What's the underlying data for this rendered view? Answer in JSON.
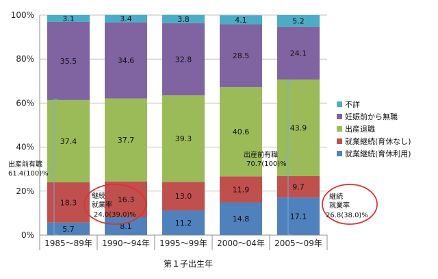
{
  "chart_data": {
    "type": "bar",
    "stacked": true,
    "categories": [
      "1985～89年",
      "1990～94年",
      "1995～99年",
      "2000～04年",
      "2005～09年"
    ],
    "series": [
      {
        "name": "就業継続(育休利用)",
        "color": "#4f81bd",
        "values": [
          5.7,
          8.1,
          11.2,
          14.8,
          17.1
        ]
      },
      {
        "name": "就業継続(育休なし)",
        "color": "#c0504d",
        "values": [
          18.3,
          16.3,
          13.0,
          11.9,
          9.7
        ]
      },
      {
        "name": "出産退職",
        "color": "#9bbb59",
        "values": [
          37.4,
          37.7,
          39.3,
          40.6,
          43.9
        ]
      },
      {
        "name": "妊娠前から無職",
        "color": "#8064a2",
        "values": [
          35.5,
          34.6,
          32.8,
          28.5,
          24.1
        ]
      },
      {
        "name": "不詳",
        "color": "#4bacc6",
        "values": [
          3.1,
          3.4,
          3.8,
          4.1,
          5.2
        ]
      }
    ],
    "value_labels": [
      [
        "5.7",
        "18.3",
        "37.4",
        "35.5",
        "3.1"
      ],
      [
        "8.1",
        "16.3",
        "37.7",
        "34.6",
        "3.4"
      ],
      [
        "11.2",
        "13.0",
        "39.3",
        "32.8",
        "3.8"
      ],
      [
        "14.8",
        "11.9",
        "40.6",
        "28.5",
        "4.1"
      ],
      [
        "17.1",
        "9.7",
        "43.9",
        "24.1",
        "5.2"
      ]
    ],
    "yticks": [
      "0%",
      "20%",
      "40%",
      "60%",
      "80%",
      "100%"
    ],
    "ylim": [
      0,
      100
    ],
    "xlabel": "第１子出生年",
    "legend_order": [
      "不詳",
      "妊娠前から無職",
      "出産退職",
      "就業継続(育休なし)",
      "就業継続(育休利用)"
    ],
    "legend_placement": "right",
    "grid": true,
    "annotations": {
      "left_bracket": {
        "line1": "出産前有職",
        "line2": "61.4(100)%"
      },
      "right_bracket": {
        "line1": "出産前有職",
        "line2": "70.7(100)%"
      },
      "circle_left": {
        "line1": "継続",
        "line2": "就業率",
        "line3": "24.0(39.0)%"
      },
      "circle_right": {
        "line1": "継続",
        "line2": "就業率",
        "line3": "26.8(38.0)%"
      }
    }
  }
}
